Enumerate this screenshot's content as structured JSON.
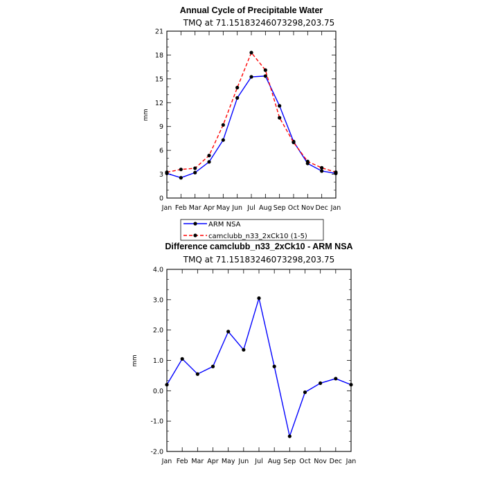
{
  "chart_data": [
    {
      "type": "line",
      "title": "Annual Cycle of Precipitable Water",
      "subtitle": "TMQ at 71.15183246073298,203.75",
      "ylabel": "mm",
      "ylim": [
        0,
        21
      ],
      "yticks": [
        "0",
        "3",
        "6",
        "9",
        "12",
        "15",
        "18",
        "21"
      ],
      "categories": [
        "Jan",
        "Feb",
        "Mar",
        "Apr",
        "May",
        "Jun",
        "Jul",
        "Aug",
        "Sep",
        "Oct",
        "Nov",
        "Dec",
        "Jan"
      ],
      "series": [
        {
          "name": "ARM NSA",
          "color": "#0000ff",
          "dash": "solid",
          "values": [
            3.1,
            2.55,
            3.2,
            4.55,
            7.3,
            12.6,
            15.25,
            15.35,
            11.6,
            7.1,
            4.35,
            3.4,
            3.1
          ]
        },
        {
          "name": "camclubb_n33_2xCk10 (1-5)",
          "color": "#ff0000",
          "dash": "dashed",
          "values": [
            3.25,
            3.6,
            3.75,
            5.35,
            9.2,
            13.9,
            18.3,
            16.1,
            10.1,
            7.0,
            4.6,
            3.8,
            3.25
          ]
        }
      ],
      "legend": [
        "ARM NSA",
        "camclubb_n33_2xCk10 (1-5)"
      ],
      "legend_position": "below"
    },
    {
      "type": "line",
      "title": "Difference camclubb_n33_2xCk10 - ARM NSA",
      "subtitle": "TMQ at 71.15183246073298,203.75",
      "ylabel": "mm",
      "ylim": [
        -2.0,
        4.0
      ],
      "yticks": [
        "-2.0",
        "-1.0",
        "0.0",
        "1.0",
        "2.0",
        "3.0",
        "4.0"
      ],
      "categories": [
        "Jan",
        "Feb",
        "Mar",
        "Apr",
        "May",
        "Jun",
        "Jul",
        "Aug",
        "Sep",
        "Oct",
        "Nov",
        "Dec",
        "Jan"
      ],
      "series": [
        {
          "color": "#0000ff",
          "dash": "solid",
          "values": [
            0.2,
            1.05,
            0.55,
            0.8,
            1.95,
            1.35,
            3.05,
            0.8,
            -1.5,
            -0.05,
            0.25,
            0.4,
            0.2
          ]
        }
      ]
    }
  ]
}
